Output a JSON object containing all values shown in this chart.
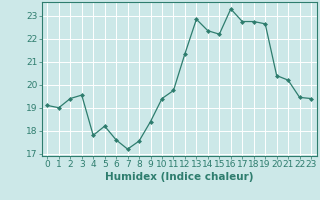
{
  "x": [
    0,
    1,
    2,
    3,
    4,
    5,
    6,
    7,
    8,
    9,
    10,
    11,
    12,
    13,
    14,
    15,
    16,
    17,
    18,
    19,
    20,
    21,
    22,
    23
  ],
  "y": [
    19.1,
    19.0,
    19.4,
    19.55,
    17.8,
    18.2,
    17.6,
    17.2,
    17.55,
    18.4,
    19.4,
    19.75,
    21.35,
    22.85,
    22.35,
    22.2,
    23.3,
    22.75,
    22.75,
    22.65,
    20.4,
    20.2,
    19.45,
    19.4
  ],
  "xlabel": "Humidex (Indice chaleur)",
  "xlim": [
    -0.5,
    23.5
  ],
  "ylim": [
    16.9,
    23.6
  ],
  "yticks": [
    17,
    18,
    19,
    20,
    21,
    22,
    23
  ],
  "xticks": [
    0,
    1,
    2,
    3,
    4,
    5,
    6,
    7,
    8,
    9,
    10,
    11,
    12,
    13,
    14,
    15,
    16,
    17,
    18,
    19,
    20,
    21,
    22,
    23
  ],
  "line_color": "#2e7d6e",
  "marker_color": "#2e7d6e",
  "bg_color": "#cce8e8",
  "grid_color": "#b0d8d8",
  "tick_label_fontsize": 6.5,
  "xlabel_fontsize": 7.5
}
